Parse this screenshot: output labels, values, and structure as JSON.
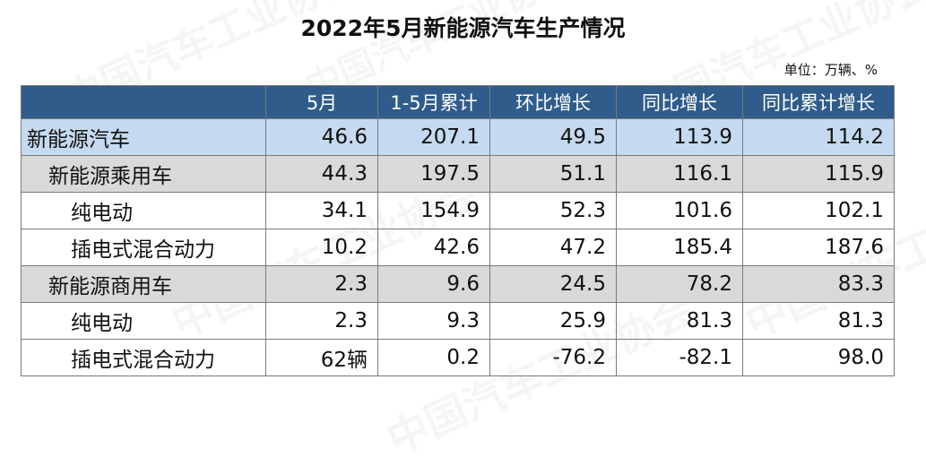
{
  "title": "2022年5月新能源汽车生产情况",
  "unit_note": "单位：万辆、%",
  "watermark_text": "中国汽车工业协会",
  "colors": {
    "header_bg": "#2f5c8a",
    "total_row_bg": "#c5daf0",
    "sub_row_bg": "#d9d9d9"
  },
  "table": {
    "columns": [
      "",
      "5月",
      "1-5月累计",
      "环比增长",
      "同比增长",
      "同比累计增长"
    ],
    "rows": [
      {
        "label": "新能源汽车",
        "level": 0,
        "style": "total",
        "values": [
          "46.6",
          "207.1",
          "49.5",
          "113.9",
          "114.2"
        ]
      },
      {
        "label": "新能源乘用车",
        "level": 1,
        "style": "sub",
        "values": [
          "44.3",
          "197.5",
          "51.1",
          "116.1",
          "115.9"
        ]
      },
      {
        "label": "纯电动",
        "level": 2,
        "style": "plain",
        "values": [
          "34.1",
          "154.9",
          "52.3",
          "101.6",
          "102.1"
        ]
      },
      {
        "label": "插电式混合动力",
        "level": 2,
        "style": "plain",
        "values": [
          "10.2",
          "42.6",
          "47.2",
          "185.4",
          "187.6"
        ]
      },
      {
        "label": "新能源商用车",
        "level": 1,
        "style": "sub",
        "values": [
          "2.3",
          "9.6",
          "24.5",
          "78.2",
          "83.3"
        ]
      },
      {
        "label": "纯电动",
        "level": 2,
        "style": "plain",
        "values": [
          "2.3",
          "9.3",
          "25.9",
          "81.3",
          "81.3"
        ]
      },
      {
        "label": "插电式混合动力",
        "level": 2,
        "style": "plain",
        "values": [
          "62辆",
          "0.2",
          "-76.2",
          "-82.1",
          "98.0"
        ]
      }
    ]
  }
}
